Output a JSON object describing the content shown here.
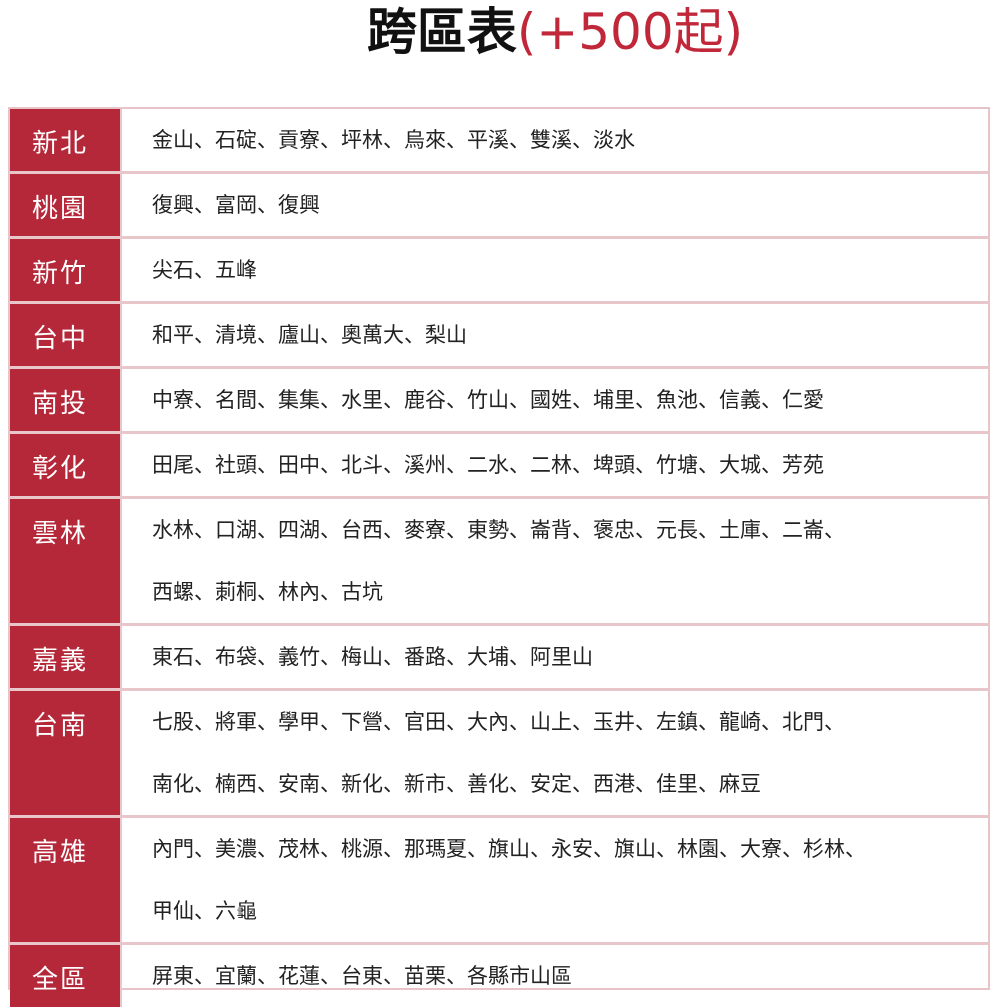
{
  "title": {
    "main": "跨區表",
    "sub": "(+500起)"
  },
  "rows": [
    {
      "region": "新北",
      "lines": [
        "金山、石碇、貢寮、坪林、烏來、平溪、雙溪、淡水"
      ]
    },
    {
      "region": "桃園",
      "lines": [
        "復興、富岡、復興"
      ]
    },
    {
      "region": "新竹",
      "lines": [
        "尖石、五峰"
      ]
    },
    {
      "region": "台中",
      "lines": [
        "和平、清境、廬山、奧萬大、梨山"
      ]
    },
    {
      "region": "南投",
      "lines": [
        "中寮、名間、集集、水里、鹿谷、竹山、國姓、埔里、魚池、信義、仁愛"
      ]
    },
    {
      "region": "彰化",
      "lines": [
        "田尾、社頭、田中、北斗、溪州、二水、二林、埤頭、竹塘、大城、芳苑"
      ]
    },
    {
      "region": "雲林",
      "lines": [
        "水林、口湖、四湖、台西、麥寮、東勢、崙背、褒忠、元長、土庫、二崙、",
        "西螺、莿桐、林內、古坑"
      ]
    },
    {
      "region": "嘉義",
      "lines": [
        "東石、布袋、義竹、梅山、番路、大埔、阿里山"
      ]
    },
    {
      "region": "台南",
      "lines": [
        "七股、將軍、學甲、下營、官田、大內、山上、玉井、左鎮、龍崎、北門、",
        "南化、楠西、安南、新化、新市、善化、安定、西港、佳里、麻豆"
      ]
    },
    {
      "region": "高雄",
      "lines": [
        "內門、美濃、茂林、桃源、那瑪夏、旗山、永安、旗山、林園、大寮、杉林、",
        "甲仙、六龜"
      ]
    },
    {
      "region": "全區",
      "lines": [
        "屏東、宜蘭、花蓮、台東、苗栗、各縣市山區"
      ]
    }
  ]
}
